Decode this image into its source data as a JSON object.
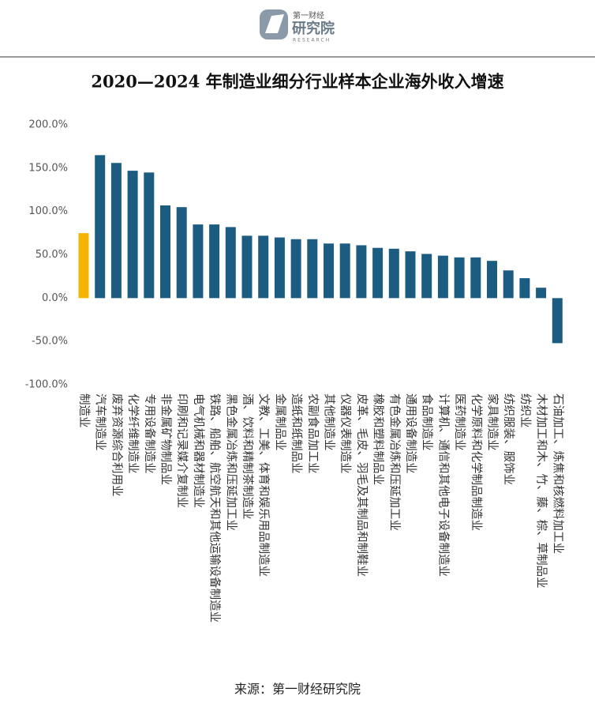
{
  "logo": {
    "name": "第一财经",
    "brand": "研究院",
    "sub": "RESEARCH"
  },
  "chart_data": {
    "type": "bar",
    "title": "2020—2024 年制造业细分行业样本企业海外收入增速",
    "source": "来源：第一财经研究院",
    "categories": [
      "制造业",
      "汽车制造业",
      "废弃资源综合利用业",
      "化学纤维制造业",
      "专用设备制造业",
      "非金属矿物制品业",
      "印刷和记录媒介复制业",
      "电气机械和器材制造业",
      "铁路、船舶、航空航天和其他运输设备制造业",
      "黑色金属冶炼和压延加工业",
      "酒、饮料和精制茶制造业",
      "文教、工美、体育和娱乐用品制造业",
      "金属制品业",
      "造纸和纸制品业",
      "农副食品加工业",
      "其他制造业",
      "仪器仪表制造业",
      "皮革、毛皮、羽毛及其制品和制鞋业",
      "橡胶和塑料制品业",
      "有色金属冶炼和压延加工业",
      "通用设备制造业",
      "食品制造业",
      "计算机、通信和其他电子设备制造业",
      "医药制造业",
      "化学原料和化学制品制造业",
      "家具制造业",
      "纺织服装、服饰业",
      "纺织业",
      "木材加工和木、竹、藤、棕、草制品业",
      "石油加工、炼焦和核燃料加工业"
    ],
    "values": [
      75,
      165,
      156,
      147,
      145,
      107,
      105,
      85,
      85,
      82,
      72,
      72,
      70,
      68,
      68,
      63,
      63,
      61,
      58,
      57,
      54,
      51,
      49,
      47,
      47,
      43,
      32,
      23,
      12,
      -52
    ],
    "colors": [
      "#f5b400",
      "#1b5c80",
      "#1b5c80",
      "#1b5c80",
      "#1b5c80",
      "#1b5c80",
      "#1b5c80",
      "#1b5c80",
      "#1b5c80",
      "#1b5c80",
      "#1b5c80",
      "#1b5c80",
      "#1b5c80",
      "#1b5c80",
      "#1b5c80",
      "#1b5c80",
      "#1b5c80",
      "#1b5c80",
      "#1b5c80",
      "#1b5c80",
      "#1b5c80",
      "#1b5c80",
      "#1b5c80",
      "#1b5c80",
      "#1b5c80",
      "#1b5c80",
      "#1b5c80",
      "#1b5c80",
      "#1b5c80",
      "#1b5c80"
    ],
    "ylim": [
      -100,
      200
    ],
    "yticks": [
      {
        "value": -100,
        "label": "-100.0%"
      },
      {
        "value": -50,
        "label": "-50.0%"
      },
      {
        "value": 0,
        "label": "0.0%"
      },
      {
        "value": 50,
        "label": "50.0%"
      },
      {
        "value": 100,
        "label": "100.0%"
      },
      {
        "value": 150,
        "label": "150.0%"
      },
      {
        "value": 200,
        "label": "200.0%"
      }
    ],
    "grid": false
  }
}
